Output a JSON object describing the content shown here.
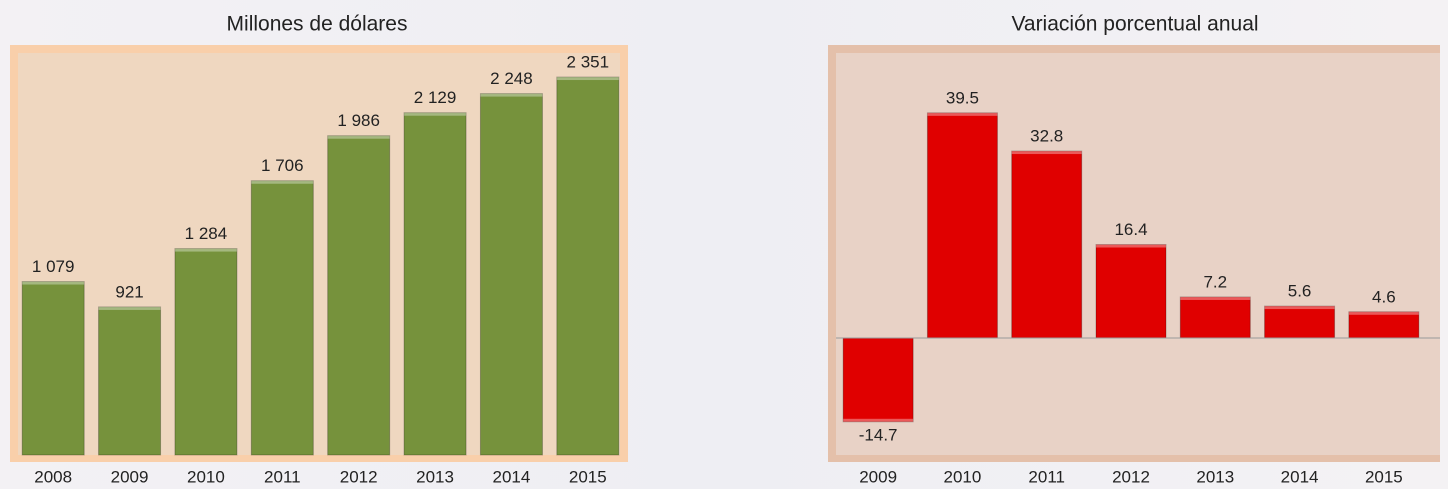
{
  "chart_data": [
    {
      "type": "bar",
      "title": "Millones de dólares",
      "categories": [
        "2008",
        "2009",
        "2010",
        "2011",
        "2012",
        "2013",
        "2014",
        "2015"
      ],
      "values": [
        1079,
        921,
        1284,
        1706,
        1986,
        2129,
        2248,
        2351
      ],
      "value_labels": [
        "1 079",
        "921",
        "1 284",
        "1 706",
        "1 986",
        "2 129",
        "2 248",
        "2 351"
      ],
      "color": "#76923c",
      "ylim": [
        0,
        2600
      ]
    },
    {
      "type": "bar",
      "title": "Variación porcentual anual",
      "categories": [
        "2009",
        "2010",
        "2011",
        "2012",
        "2013",
        "2014",
        "2015"
      ],
      "values": [
        -14.7,
        39.5,
        32.8,
        16.4,
        7.2,
        5.6,
        4.6
      ],
      "color": "#e00000",
      "ylim": [
        -20,
        50
      ]
    }
  ]
}
